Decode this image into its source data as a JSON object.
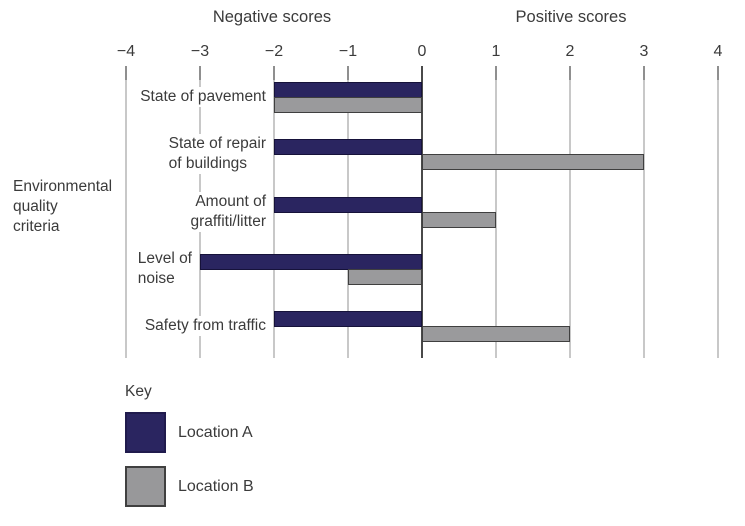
{
  "chart_data": {
    "type": "bar",
    "orientation": "horizontal-diverging",
    "title_negative": "Negative scores",
    "title_positive": "Positive scores",
    "ylabel_lines": [
      "Environmental",
      "quality",
      "criteria"
    ],
    "x_ticks": [
      -4,
      -3,
      -2,
      -1,
      0,
      1,
      2,
      3,
      4
    ],
    "x_tick_labels": [
      "−4",
      "−3",
      "−2",
      "−1",
      "0",
      "1",
      "2",
      "3",
      "4"
    ],
    "xlim": [
      -4,
      4
    ],
    "grid": true,
    "categories": [
      {
        "name": "State of pavement",
        "label_lines": [
          "State of pavement"
        ],
        "label_align": "right"
      },
      {
        "name": "State of repair of buildings",
        "label_lines": [
          "State of repair",
          "of buildings"
        ],
        "label_align": "left"
      },
      {
        "name": "Amount of graffiti/litter",
        "label_lines": [
          "Amount of",
          "graffiti/litter"
        ],
        "label_align": "right"
      },
      {
        "name": "Level of noise",
        "label_lines": [
          "Level of",
          "noise"
        ],
        "label_align": "left"
      },
      {
        "name": "Safety from traffic",
        "label_lines": [
          "Safety from traffic"
        ],
        "label_align": "right"
      }
    ],
    "series": [
      {
        "name": "Location A",
        "color": "#2a2560",
        "values": [
          -2,
          -2,
          -2,
          -3,
          -2
        ]
      },
      {
        "name": "Location B",
        "color": "#9a9a9c",
        "values": [
          -2,
          3,
          1,
          -1,
          2
        ]
      }
    ],
    "legend": {
      "title": "Key",
      "position": "bottom-left"
    }
  }
}
